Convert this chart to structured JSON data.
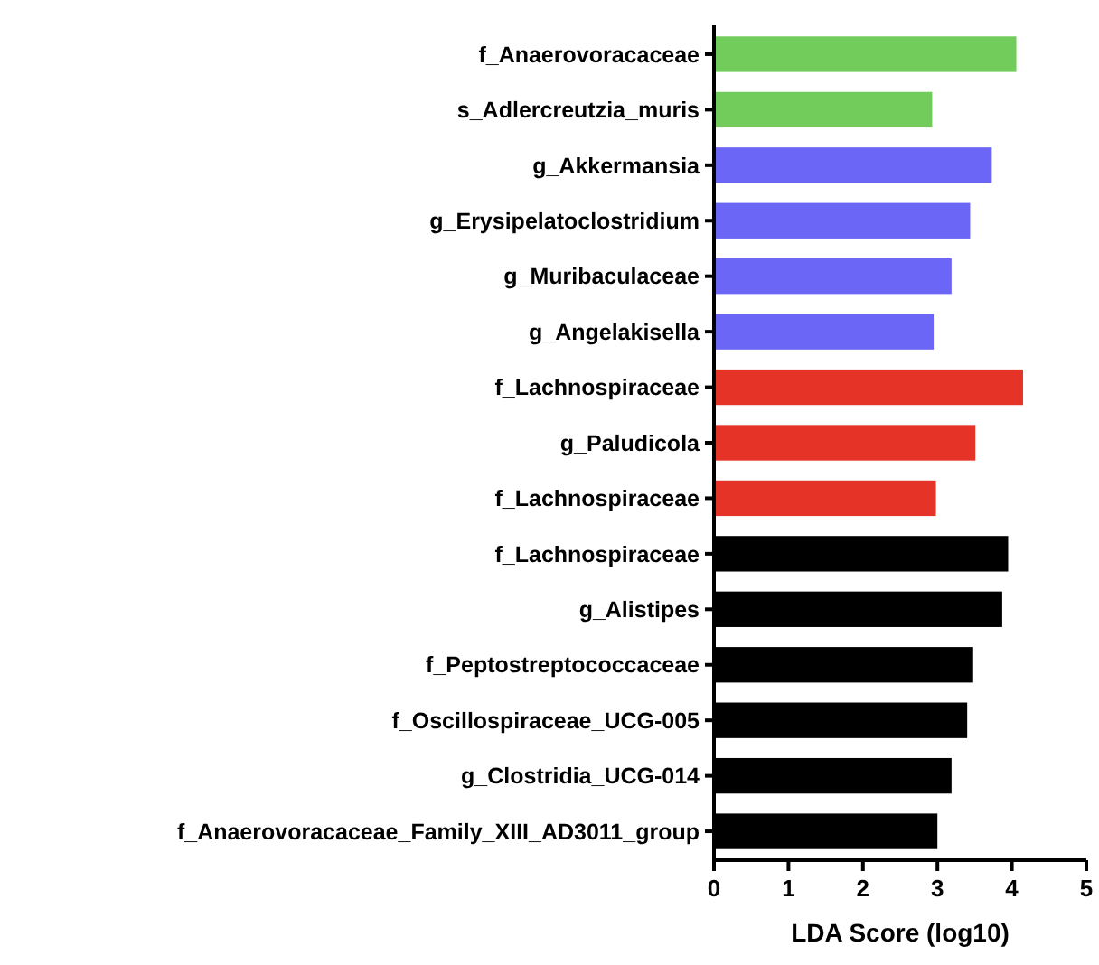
{
  "chart_data": {
    "type": "bar",
    "orientation": "horizontal",
    "xlabel": "LDA Score (log10)",
    "categories": [
      "f_Anaerovoracaceae",
      "s_Adlercreutzia_muris",
      "g_Akkermansia",
      "g_Erysipelatoclostridium",
      "g_Muribaculaceae",
      "g_Angelakisella",
      "f_Lachnospiraceae",
      "g_Paludicola",
      "f_Lachnospiraceae",
      "f_Lachnospiraceae",
      "g_Alistipes",
      "f_Peptostreptococcaceae",
      "f_Oscillospiraceae_UCG-005",
      "g_Clostridia_UCG-014",
      "f_Anaerovoracaceae_Family_XIII_AD3011_group"
    ],
    "values": [
      4.06,
      2.93,
      3.73,
      3.44,
      3.19,
      2.95,
      4.15,
      3.51,
      2.98,
      3.95,
      3.87,
      3.48,
      3.4,
      3.19,
      3.0
    ],
    "colors": [
      "#72cc5c",
      "#72cc5c",
      "#6b66f5",
      "#6b66f5",
      "#6b66f5",
      "#6b66f5",
      "#e63327",
      "#e63327",
      "#e63327",
      "#000000",
      "#000000",
      "#000000",
      "#000000",
      "#000000",
      "#000000"
    ],
    "xlim": [
      0,
      5
    ],
    "xticks": [
      0,
      1,
      2,
      3,
      4,
      5
    ],
    "grid": false
  }
}
